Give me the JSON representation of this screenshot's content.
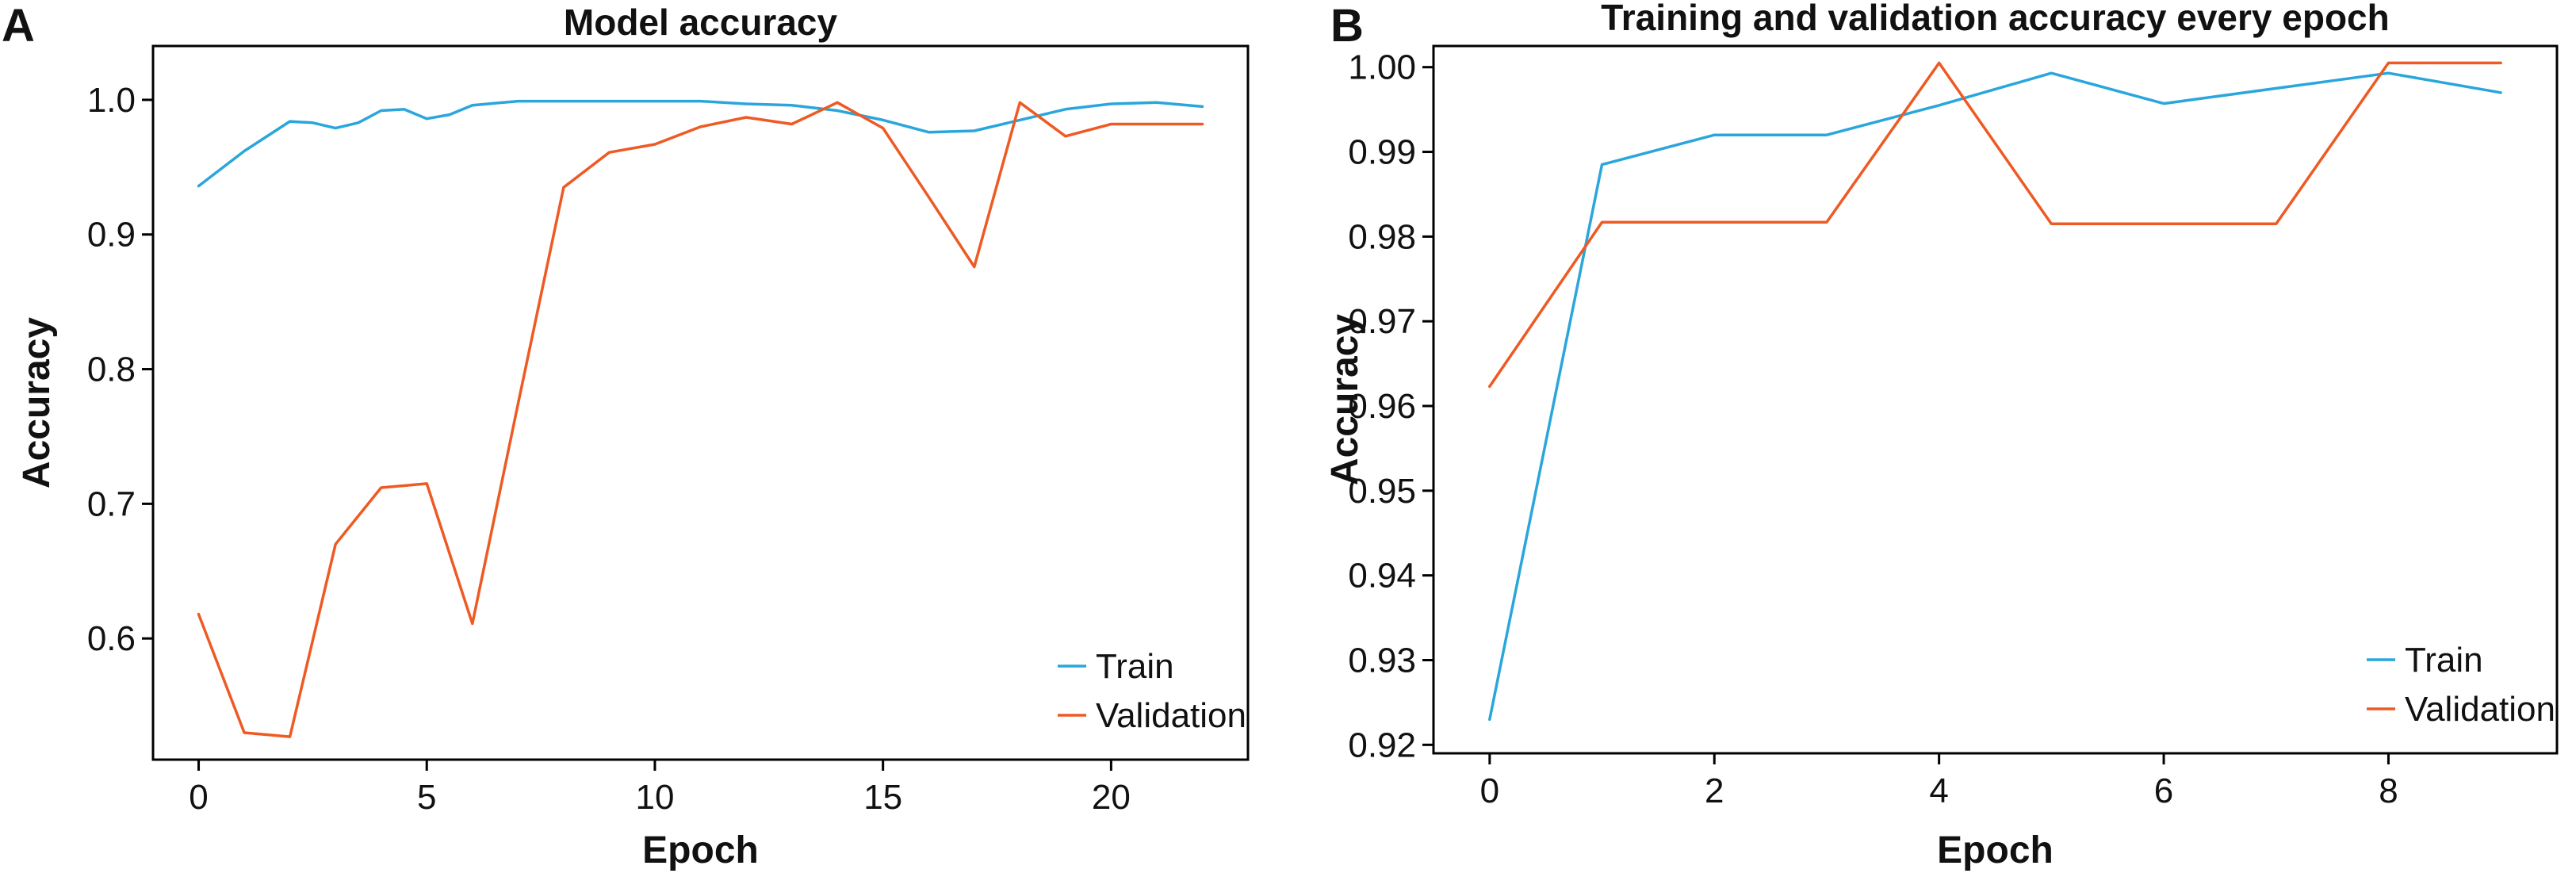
{
  "panels": [
    {
      "letter": "A",
      "chart_data": {
        "type": "line",
        "title": "Model accuracy",
        "xlabel": "Epoch",
        "ylabel": "Accuracy",
        "xlim": [
          -1,
          23
        ],
        "ylim": [
          0.51,
          1.04
        ],
        "xticks": [
          0,
          5,
          10,
          15,
          20
        ],
        "yticks": [
          0.6,
          0.7,
          0.8,
          0.9,
          1.0
        ],
        "ytick_labels": [
          "0.6",
          "0.7",
          "0.8",
          "0.9",
          "1.0"
        ],
        "grid": false,
        "legend_position": "bottom-right",
        "series": [
          {
            "name": "Train",
            "color": "#2aa6dc",
            "x": [
              0,
              1,
              2,
              2.5,
              3,
              3.5,
              4,
              4.5,
              5,
              5.5,
              6,
              7,
              8,
              9,
              10,
              11,
              12,
              13,
              14,
              15,
              16,
              17,
              18,
              19,
              20,
              21,
              22
            ],
            "y": [
              0.936,
              0.962,
              0.984,
              0.983,
              0.979,
              0.983,
              0.992,
              0.993,
              0.986,
              0.989,
              0.996,
              0.999,
              0.999,
              0.999,
              0.999,
              0.999,
              0.997,
              0.996,
              0.992,
              0.985,
              0.976,
              0.977,
              0.985,
              0.993,
              0.997,
              0.998,
              0.995
            ]
          },
          {
            "name": "Validation",
            "color": "#ee5a24",
            "x": [
              0,
              1,
              2,
              3,
              4,
              5,
              6,
              7,
              8,
              9,
              10,
              11,
              12,
              13,
              14,
              15,
              16,
              17,
              18,
              19,
              20,
              21,
              22
            ],
            "y": [
              0.618,
              0.53,
              0.527,
              0.67,
              0.712,
              0.715,
              0.611,
              0.774,
              0.935,
              0.961,
              0.967,
              0.98,
              0.987,
              0.982,
              0.998,
              0.979,
              0.928,
              0.876,
              0.998,
              0.973,
              0.982,
              0.982,
              0.982
            ]
          }
        ]
      }
    },
    {
      "letter": "B",
      "chart_data": {
        "type": "line",
        "title": "Training and validation accuracy every epoch",
        "xlabel": "Epoch",
        "ylabel": "Accuracy",
        "xlim": [
          -0.5,
          9.5
        ],
        "ylim": [
          0.919,
          1.0025
        ],
        "xticks": [
          0,
          2,
          4,
          6,
          8
        ],
        "yticks": [
          0.92,
          0.93,
          0.94,
          0.95,
          0.96,
          0.97,
          0.98,
          0.99,
          1.0
        ],
        "ytick_labels": [
          "0.92",
          "0.93",
          "0.94",
          "0.95",
          "0.96",
          "0.97",
          "0.98",
          "0.99",
          "1.00"
        ],
        "grid": false,
        "legend_position": "bottom-right",
        "series": [
          {
            "name": "Train",
            "color": "#2aa6dc",
            "x": [
              0,
              1,
              2,
              3,
              4,
              5,
              6,
              7,
              8,
              9
            ],
            "y": [
              0.923,
              0.9885,
              0.992,
              0.992,
              0.9955,
              0.9993,
              0.9957,
              0.9975,
              0.9993,
              0.997
            ]
          },
          {
            "name": "Validation",
            "color": "#ee5a24",
            "x": [
              0,
              1,
              2,
              3,
              4,
              5,
              6,
              7,
              8,
              9
            ],
            "y": [
              0.9623,
              0.9817,
              0.9817,
              0.9817,
              1.0005,
              0.9815,
              0.9815,
              0.9815,
              1.0005,
              1.0005
            ]
          }
        ]
      }
    }
  ]
}
